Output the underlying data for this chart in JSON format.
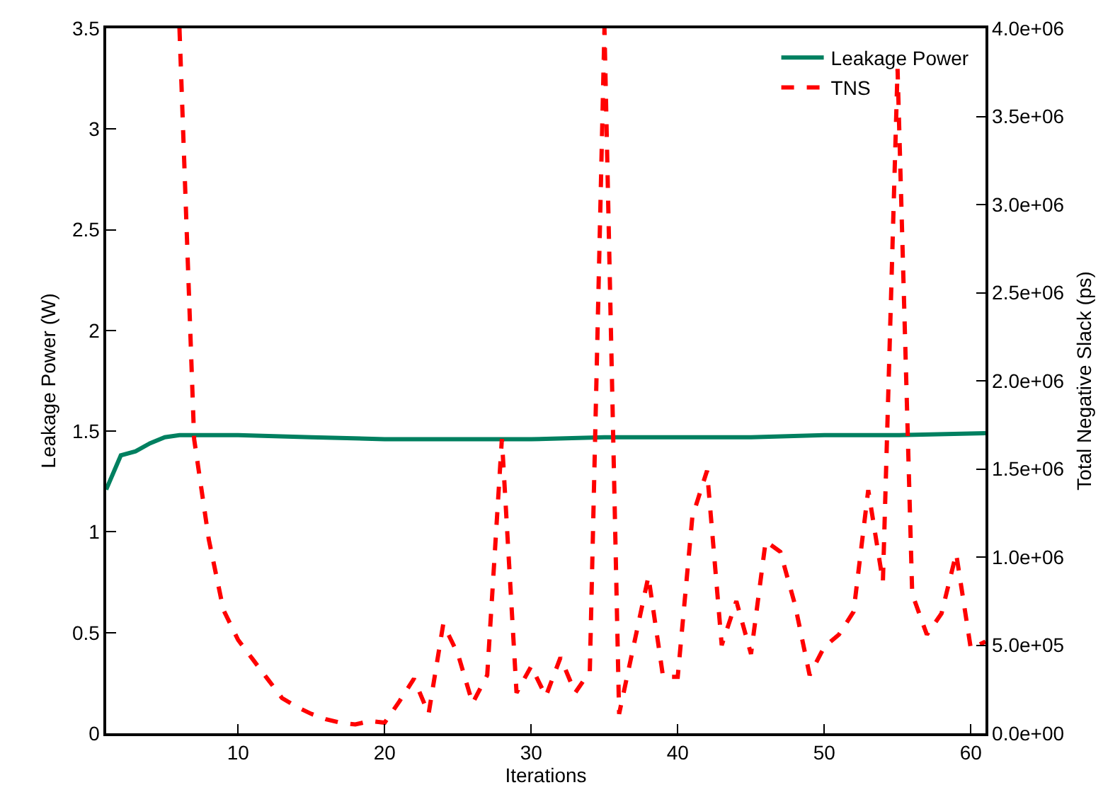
{
  "chart_data": {
    "type": "line",
    "xlabel": "Iterations",
    "ylabel": "Leakage Power (W)",
    "y2label": "Total Negative Slack (ps)",
    "xlim": [
      1,
      61
    ],
    "xticks": [
      10,
      20,
      30,
      40,
      50,
      60
    ],
    "ylim": [
      0,
      3.5
    ],
    "yticks": [
      0,
      0.5,
      1,
      1.5,
      2,
      2.5,
      3,
      3.5
    ],
    "y2lim": [
      0,
      4000000
    ],
    "y2ticks": [
      {
        "value": 0,
        "label": "0.0e+00"
      },
      {
        "value": 500000,
        "label": "5.0e+05"
      },
      {
        "value": 1000000,
        "label": "1.0e+06"
      },
      {
        "value": 1500000,
        "label": "1.5e+06"
      },
      {
        "value": 2000000,
        "label": "2.0e+06"
      },
      {
        "value": 2500000,
        "label": "2.5e+06"
      },
      {
        "value": 3000000,
        "label": "3.0e+06"
      },
      {
        "value": 3500000,
        "label": "3.5e+06"
      },
      {
        "value": 4000000,
        "label": "4.0e+06"
      }
    ],
    "legend": "top right",
    "marker": "none",
    "series": [
      {
        "name": "Leakage Power",
        "color": "#008060",
        "line_style": "solid",
        "x": [
          1,
          2,
          3,
          4,
          5,
          6,
          7,
          8,
          10,
          15,
          20,
          25,
          30,
          35,
          40,
          45,
          50,
          55,
          61
        ],
        "values": [
          1.21,
          1.38,
          1.4,
          1.44,
          1.47,
          1.48,
          1.48,
          1.48,
          1.48,
          1.47,
          1.46,
          1.46,
          1.46,
          1.47,
          1.47,
          1.47,
          1.48,
          1.48,
          1.49
        ]
      },
      {
        "name": "TNS",
        "color": "#ff0000",
        "line_style": "dashed",
        "axis": "y2",
        "x": [
          6,
          7,
          8,
          9,
          10,
          11,
          12,
          13,
          14,
          15,
          16,
          17,
          18,
          19,
          20,
          21,
          22,
          23,
          24,
          25,
          26,
          27,
          28,
          29,
          30,
          31,
          32,
          33,
          34,
          35,
          36,
          37,
          38,
          39,
          40,
          41,
          42,
          43,
          44,
          45,
          46,
          47,
          48,
          49,
          50,
          51,
          52,
          53,
          54,
          55,
          56,
          57,
          58,
          59,
          60,
          61
        ],
        "values": [
          4000000,
          1670000,
          1100000,
          700000,
          530000,
          420000,
          310000,
          200000,
          150000,
          110000,
          80000,
          60000,
          50000,
          70000,
          60000,
          180000,
          310000,
          110000,
          620000,
          450000,
          170000,
          330000,
          1670000,
          230000,
          380000,
          210000,
          430000,
          230000,
          350000,
          4000000,
          110000,
          500000,
          890000,
          320000,
          320000,
          1230000,
          1490000,
          500000,
          750000,
          450000,
          1090000,
          1030000,
          730000,
          330000,
          490000,
          560000,
          690000,
          1380000,
          860000,
          3770000,
          790000,
          560000,
          680000,
          1020000,
          480000,
          520000
        ]
      }
    ]
  }
}
